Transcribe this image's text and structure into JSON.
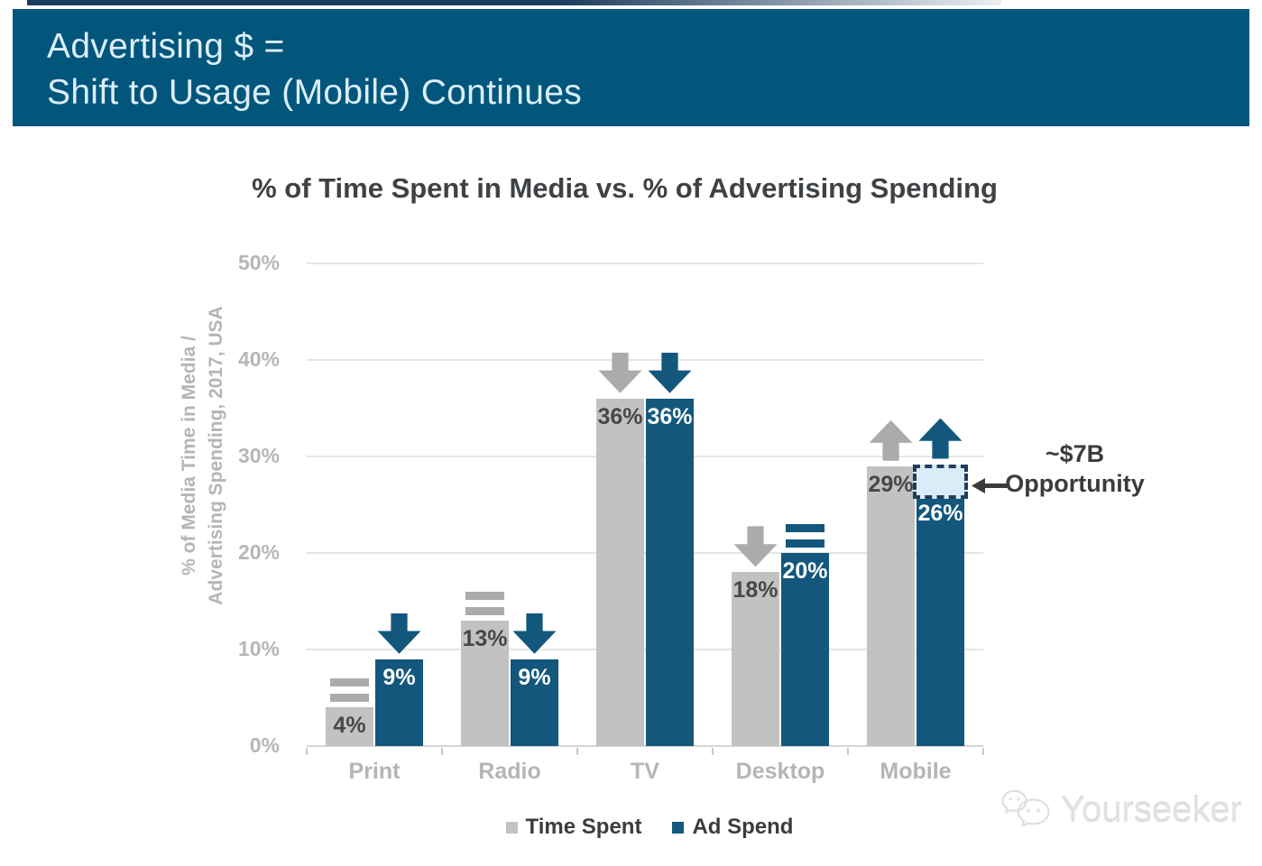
{
  "header": {
    "line1": "Advertising $ =",
    "line2": "Shift to Usage (Mobile) Continues",
    "background_color": "#02567C"
  },
  "chart_data": {
    "type": "bar",
    "title": "% of Time Spent in Media vs. % of Advertising Spending",
    "ylabel_lines": [
      "% of Media Time in Media /",
      "Advertising Spending, 2017, USA"
    ],
    "categories": [
      "Print",
      "Radio",
      "TV",
      "Desktop",
      "Mobile"
    ],
    "series": [
      {
        "name": "Time Spent",
        "color": "#C2C2C2",
        "label_color": "#474747",
        "trend_color": "#ABABAB",
        "values": [
          4,
          13,
          36,
          18,
          29
        ],
        "labels": [
          "4%",
          "13%",
          "36%",
          "18%",
          "29%"
        ],
        "trend": [
          "flat",
          "flat",
          "down",
          "down",
          "up"
        ]
      },
      {
        "name": "Ad Spend",
        "color": "#13577D",
        "label_color": "#FFFFFF",
        "trend_color": "#13577D",
        "values": [
          9,
          9,
          36,
          20,
          26
        ],
        "labels": [
          "9%",
          "9%",
          "36%",
          "20%",
          "26%"
        ],
        "trend": [
          "down",
          "down",
          "down",
          "flat",
          "up"
        ]
      }
    ],
    "ylim": [
      0,
      50
    ],
    "yticks": [
      "0%",
      "10%",
      "20%",
      "30%",
      "40%",
      "50%"
    ],
    "grid": true,
    "legend_position": "bottom",
    "annotation": {
      "line1": "~$7B",
      "line2": "Opportunity",
      "category": "Mobile",
      "series": "Ad Spend",
      "gap_from_percent": 26,
      "gap_to_percent": 29.2,
      "box_fill": "#D9ECF8",
      "box_border": "#1E3E5E"
    }
  },
  "legend": {
    "items": [
      {
        "label": "Time Spent",
        "color": "#C2C2C2"
      },
      {
        "label": "Ad Spend",
        "color": "#13577D"
      }
    ]
  },
  "watermark": {
    "text": "Yourseeker"
  }
}
